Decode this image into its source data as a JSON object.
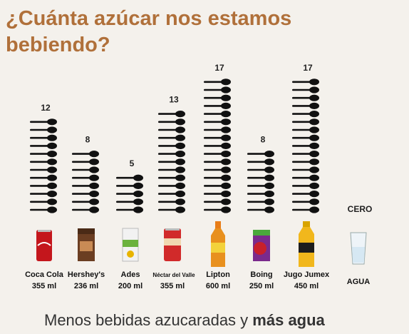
{
  "title": "¿Cuánta azúcar nos estamos bebiendo?",
  "footer": {
    "text": "Menos bebidas azucaradas y",
    "bold": "más agua"
  },
  "colors": {
    "title": "#b0703a",
    "spoon": "#111111"
  },
  "chart_data": {
    "type": "bar",
    "unit": "cucharadas de azúcar",
    "categories": [
      "Coca Cola",
      "Hershey's",
      "Ades",
      "Néctar del Valle",
      "Lipton",
      "Boing",
      "Jugo Jumex",
      "AGUA"
    ],
    "volumes": [
      "355 ml",
      "236 ml",
      "200 ml",
      "355 ml",
      "600 ml",
      "250 ml",
      "450 ml",
      ""
    ],
    "values": [
      12,
      8,
      5,
      13,
      17,
      8,
      17,
      0
    ],
    "value_labels": [
      "12",
      "8",
      "5",
      "13",
      "17",
      "8",
      "17",
      "CERO"
    ],
    "drink_icons": [
      "coca-cola-can-icon",
      "hersheys-carton-icon",
      "ades-carton-icon",
      "valle-can-icon",
      "lipton-bottle-icon",
      "boing-carton-icon",
      "jumex-bottle-icon",
      "water-glass-icon"
    ]
  }
}
